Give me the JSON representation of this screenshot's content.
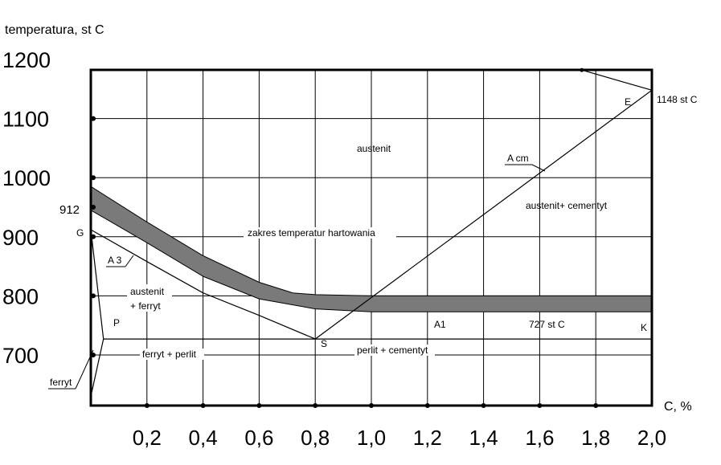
{
  "chart_data": {
    "type": "phase-diagram",
    "y_axis_title": "temperatura, st C",
    "x_axis_title": "C, %",
    "xlim": [
      0,
      2.0
    ],
    "ylim": [
      630,
      1200
    ],
    "y_ticks": [
      {
        "value": 1200,
        "label": "1200"
      },
      {
        "value": 1100,
        "label": "1100"
      },
      {
        "value": 1000,
        "label": "1000"
      },
      {
        "value": 900,
        "label": "900"
      },
      {
        "value": 800,
        "label": "800"
      },
      {
        "value": 700,
        "label": "700"
      }
    ],
    "x_ticks": [
      {
        "value": 0.2,
        "label": "0,2"
      },
      {
        "value": 0.4,
        "label": "0,4"
      },
      {
        "value": 0.6,
        "label": "0,6"
      },
      {
        "value": 0.8,
        "label": "0,8"
      },
      {
        "value": 1.0,
        "label": "1,0"
      },
      {
        "value": 1.2,
        "label": "1,2"
      },
      {
        "value": 1.4,
        "label": "1,4"
      },
      {
        "value": 1.6,
        "label": "1,6"
      },
      {
        "value": 1.8,
        "label": "1,8"
      },
      {
        "value": 2.0,
        "label": "2,0"
      }
    ],
    "grid": true,
    "hardening_band": {
      "upper": [
        [
          0.0,
          985
        ],
        [
          0.2,
          925
        ],
        [
          0.4,
          868
        ],
        [
          0.6,
          823
        ],
        [
          0.72,
          805
        ],
        [
          0.8,
          802
        ],
        [
          1.0,
          800
        ],
        [
          2.0,
          800
        ]
      ],
      "lower": [
        [
          0.0,
          945
        ],
        [
          0.2,
          890
        ],
        [
          0.4,
          833
        ],
        [
          0.6,
          795
        ],
        [
          0.8,
          778
        ],
        [
          1.0,
          773
        ],
        [
          2.0,
          773
        ]
      ],
      "label": "zakres temperatur hartowania"
    },
    "lines": {
      "A3": [
        [
          0.0,
          912
        ],
        [
          0.2,
          858
        ],
        [
          0.4,
          805
        ],
        [
          0.6,
          767
        ],
        [
          0.8,
          727
        ]
      ],
      "Acm": [
        [
          0.8,
          727
        ],
        [
          2.0,
          1148
        ]
      ],
      "A1": [
        [
          0.045,
          727
        ],
        [
          2.0,
          727
        ]
      ],
      "GP": [
        [
          0.0,
          912
        ],
        [
          0.045,
          727
        ]
      ],
      "solvus": [
        [
          0.045,
          727
        ],
        [
          0.0,
          630
        ]
      ],
      "liquidus": [
        [
          1.75,
          1182
        ],
        [
          2.0,
          1148
        ]
      ]
    },
    "points": {
      "G": "G",
      "P": "P",
      "S": "S",
      "E": "E",
      "K": "K"
    },
    "value_912": "912",
    "value_1148": "1148 st C",
    "value_727": "727 st C",
    "label_A3": "A 3",
    "label_Acm": "A cm",
    "label_A1": "A1",
    "regions": {
      "austenit": "austenit",
      "austenit_cementyt": "austenit+ cementyt",
      "austenit_ferryt_1": "austenit",
      "austenit_ferryt_2": "+ ferryt",
      "ferryt_perlit": "ferryt + perlit",
      "perlit_cementyt": "perlit + cementyt",
      "ferryt": "ferryt"
    }
  }
}
